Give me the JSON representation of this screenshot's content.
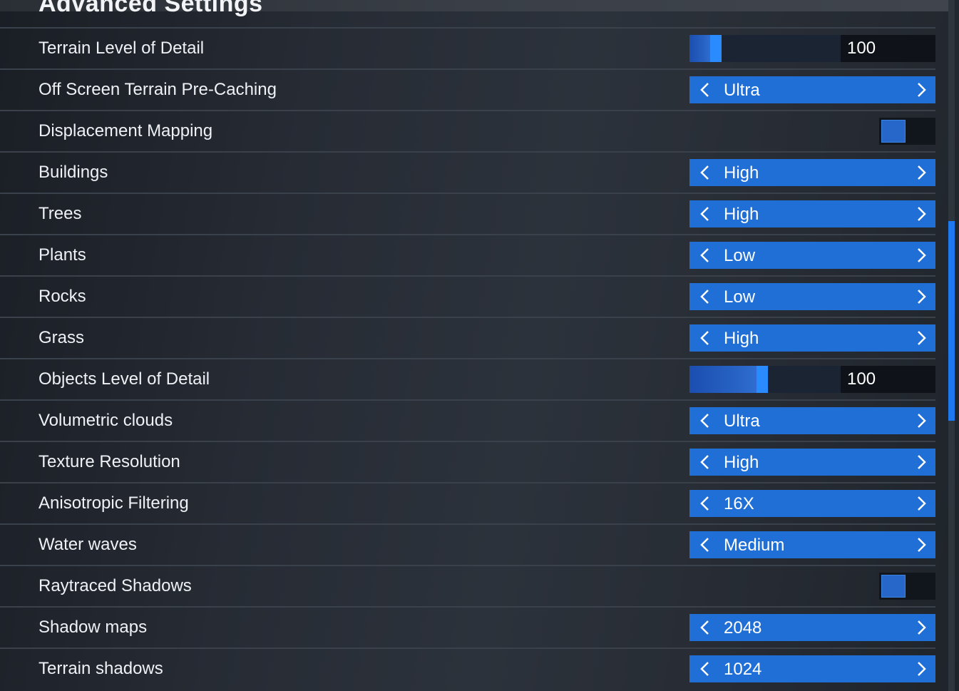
{
  "section_title": "Advanced Settings",
  "colors": {
    "accent": "#1f6fd6",
    "slider_thumb": "#2a8bff",
    "scrollbar_thumb": "#1e78f0",
    "background": "#262b34"
  },
  "icons": {
    "prev": "chevron-left-icon",
    "next": "chevron-right-icon"
  },
  "rows": [
    {
      "label": "Terrain Level of Detail",
      "type": "slider",
      "value": "100",
      "fill_fraction": 0.15
    },
    {
      "label": "Off Screen Terrain Pre-Caching",
      "type": "select",
      "value": "Ultra"
    },
    {
      "label": "Displacement Mapping",
      "type": "toggle",
      "value": "on"
    },
    {
      "label": "Buildings",
      "type": "select",
      "value": "High"
    },
    {
      "label": "Trees",
      "type": "select",
      "value": "High"
    },
    {
      "label": "Plants",
      "type": "select",
      "value": "Low"
    },
    {
      "label": "Rocks",
      "type": "select",
      "value": "Low"
    },
    {
      "label": "Grass",
      "type": "select",
      "value": "High"
    },
    {
      "label": "Objects Level of Detail",
      "type": "slider",
      "value": "100",
      "fill_fraction": 0.48
    },
    {
      "label": "Volumetric clouds",
      "type": "select",
      "value": "Ultra"
    },
    {
      "label": "Texture Resolution",
      "type": "select",
      "value": "High"
    },
    {
      "label": "Anisotropic Filtering",
      "type": "select",
      "value": "16X"
    },
    {
      "label": "Water waves",
      "type": "select",
      "value": "Medium"
    },
    {
      "label": "Raytraced Shadows",
      "type": "toggle",
      "value": "on"
    },
    {
      "label": "Shadow maps",
      "type": "select",
      "value": "2048"
    },
    {
      "label": "Terrain shadows",
      "type": "select",
      "value": "1024"
    }
  ],
  "scroll_position": 0.45
}
